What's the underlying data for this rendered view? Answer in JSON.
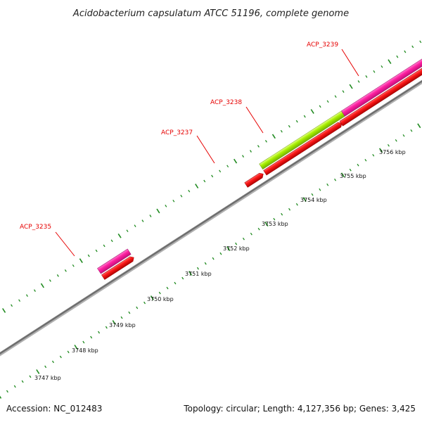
{
  "title": "Acidobacterium capsulatum ATCC 51196, complete genome",
  "footer": {
    "accession": "Accession: NC_012483",
    "summary": "Topology: circular; Length: 4,127,356 bp; Genes: 3,425"
  },
  "colors": {
    "backbone": "#808080",
    "tick": "#1f8a1f",
    "gene_cds": "#ff0000",
    "gene_magenta": "#ff1fa0",
    "gene_green": "#a8f000",
    "label": "#e60000"
  },
  "scale_labels": [
    {
      "text": "3747 kbp",
      "kbp": 3747
    },
    {
      "text": "3748 kbp",
      "kbp": 3748
    },
    {
      "text": "3749 kbp",
      "kbp": 3749
    },
    {
      "text": "3750 kbp",
      "kbp": 3750
    },
    {
      "text": "3751 kbp",
      "kbp": 3751
    },
    {
      "text": "3752 kbp",
      "kbp": 3752
    },
    {
      "text": "3753 kbp",
      "kbp": 3753
    },
    {
      "text": "3754 kbp",
      "kbp": 3754
    },
    {
      "text": "3755 kbp",
      "kbp": 3755
    },
    {
      "text": "3756 kbp",
      "kbp": 3756
    }
  ],
  "gene_labels": [
    {
      "text": "ACP_3235"
    },
    {
      "text": "ACP_3237"
    },
    {
      "text": "ACP_3238"
    },
    {
      "text": "ACP_3239"
    }
  ]
}
